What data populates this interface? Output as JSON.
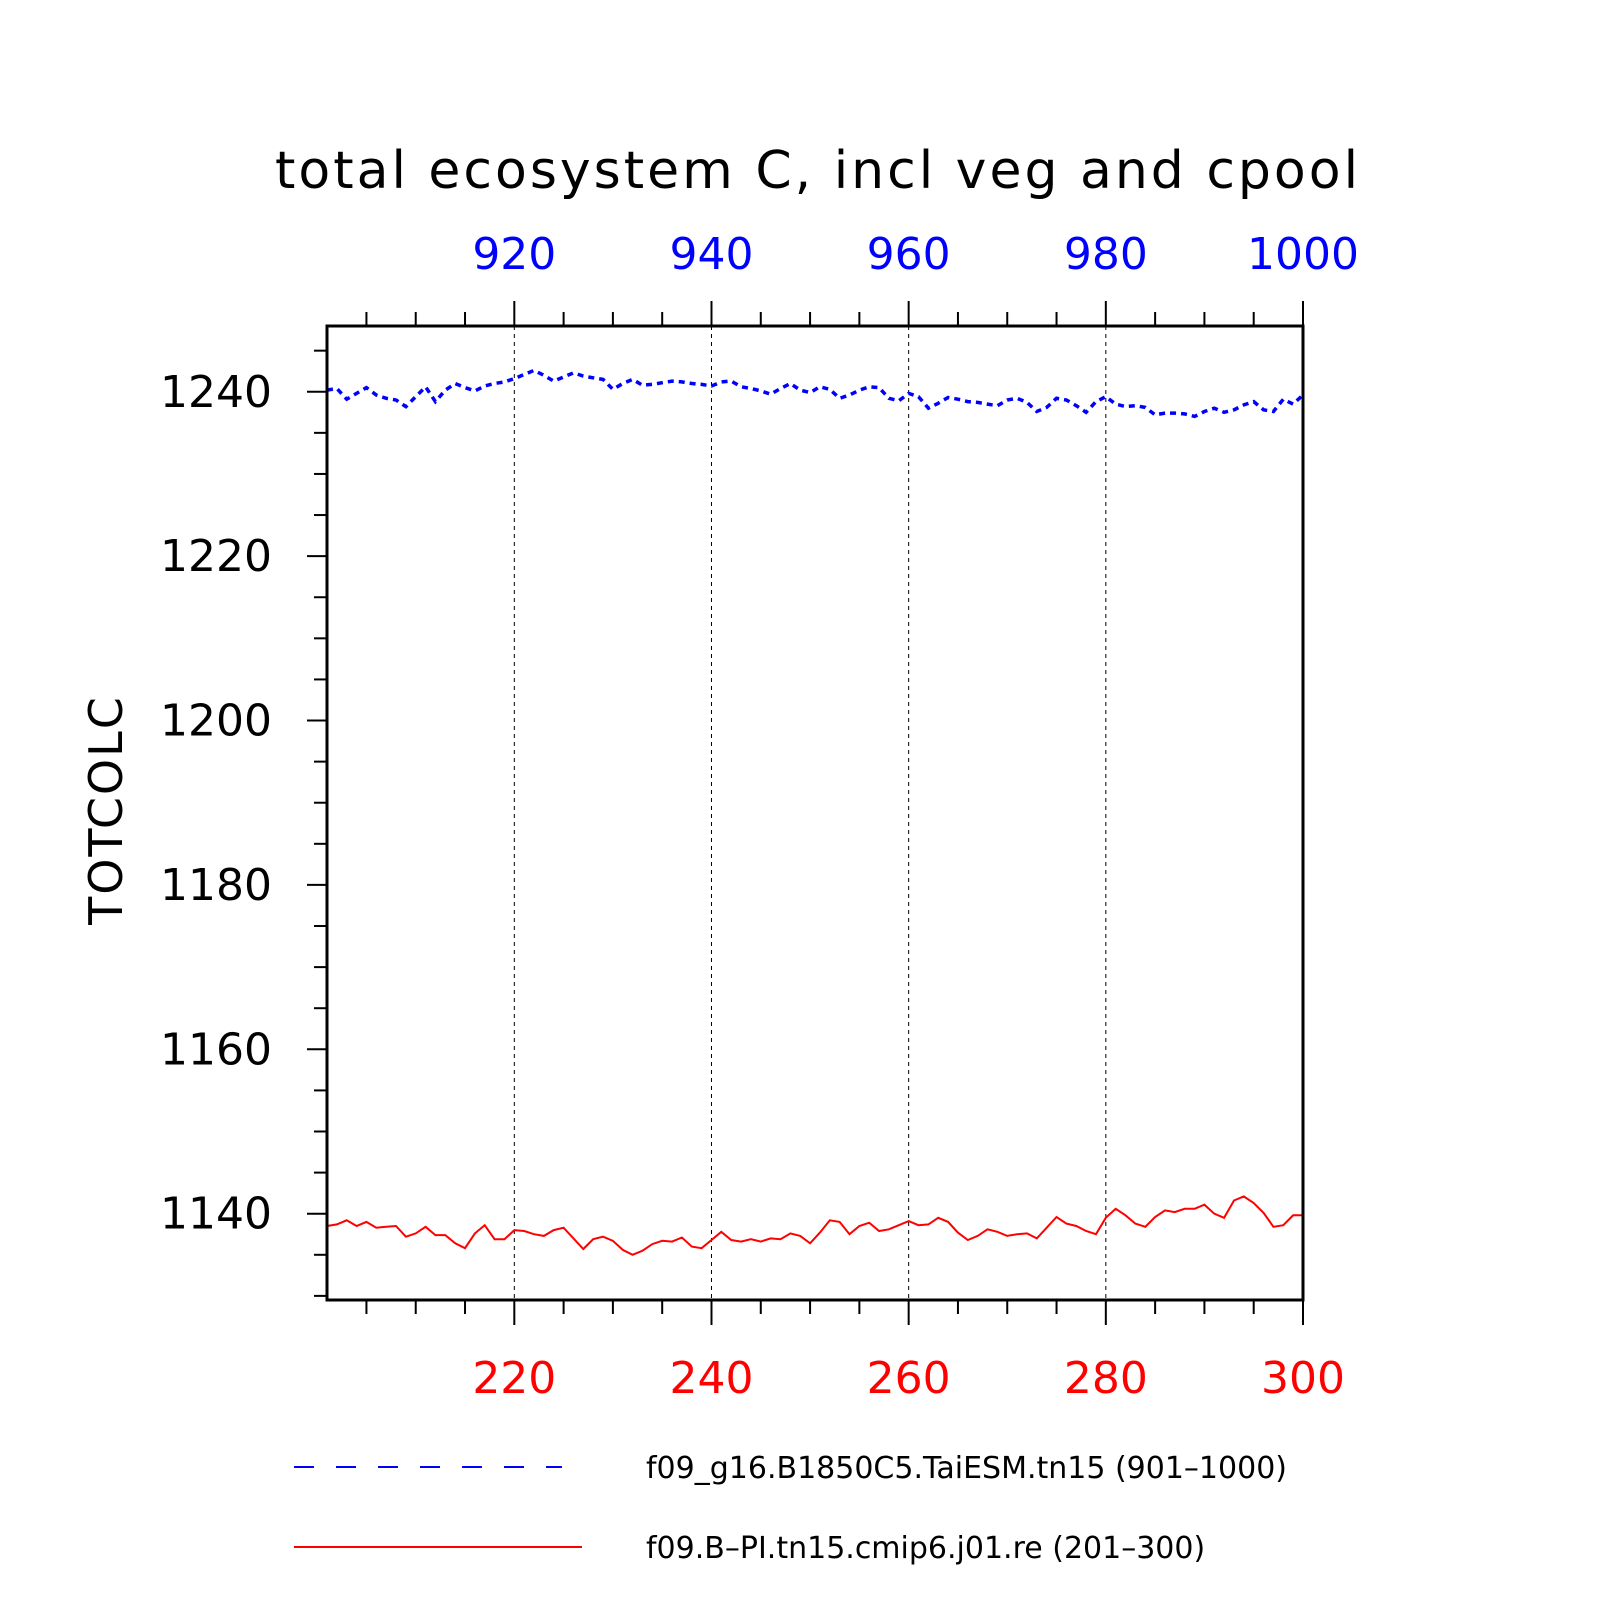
{
  "chart_data": {
    "type": "line",
    "title": "total ecosystem C, incl veg and cpool",
    "ylabel": "TOTCOLC",
    "ylim": [
      1129.5,
      1248
    ],
    "yticks": [
      1140,
      1160,
      1180,
      1200,
      1220,
      1240
    ],
    "grid": "vertical dashed at major x ticks",
    "legend_position": "bottom",
    "axes": {
      "top": {
        "color": "#0000ff",
        "range": [
          901,
          1000
        ],
        "ticks": [
          920,
          940,
          960,
          980,
          1000
        ]
      },
      "bottom": {
        "color": "#ff0000",
        "range": [
          201,
          300
        ],
        "ticks": [
          220,
          240,
          260,
          280,
          300
        ]
      }
    },
    "series": [
      {
        "name": "f09_g16.B1850C5.TaiESM.tn15 (901–1000)",
        "axis": "top",
        "color": "#0000ff",
        "style": "dashed",
        "x_start": 901,
        "values": [
          1240.2,
          1240.4,
          1239.1,
          1239.8,
          1240.5,
          1239.6,
          1239.2,
          1239.0,
          1238.2,
          1239.4,
          1240.6,
          1238.8,
          1240.2,
          1241.0,
          1240.5,
          1240.1,
          1240.7,
          1241.0,
          1241.2,
          1241.6,
          1242.1,
          1242.6,
          1242.0,
          1241.3,
          1241.8,
          1242.3,
          1241.9,
          1241.7,
          1241.5,
          1240.3,
          1241.0,
          1241.5,
          1240.8,
          1240.9,
          1241.1,
          1241.3,
          1241.2,
          1241.0,
          1240.9,
          1240.7,
          1241.2,
          1241.3,
          1240.6,
          1240.4,
          1240.1,
          1239.7,
          1240.4,
          1241.0,
          1240.2,
          1239.9,
          1240.6,
          1240.3,
          1239.2,
          1239.6,
          1240.2,
          1240.6,
          1240.5,
          1239.2,
          1238.9,
          1239.8,
          1239.4,
          1238.0,
          1238.6,
          1239.3,
          1239.1,
          1238.8,
          1238.7,
          1238.5,
          1238.3,
          1239.0,
          1239.2,
          1238.7,
          1237.6,
          1238.1,
          1239.2,
          1239.0,
          1238.3,
          1237.5,
          1238.8,
          1239.4,
          1238.5,
          1238.2,
          1238.3,
          1238.1,
          1237.2,
          1237.4,
          1237.4,
          1237.3,
          1237.0,
          1237.6,
          1238.0,
          1237.5,
          1237.8,
          1238.4,
          1238.8,
          1237.8,
          1237.6,
          1239.1,
          1238.5,
          1239.6
        ]
      },
      {
        "name": "f09.B–PI.tn15.cmip6.j01.re (201–300)",
        "axis": "bottom",
        "color": "#ff0000",
        "style": "solid",
        "x_start": 201,
        "values": [
          1138.5,
          1138.7,
          1139.2,
          1138.5,
          1139.0,
          1138.3,
          1138.4,
          1138.5,
          1137.2,
          1137.6,
          1138.4,
          1137.4,
          1137.4,
          1136.4,
          1135.8,
          1137.6,
          1138.6,
          1136.9,
          1136.9,
          1138.0,
          1137.9,
          1137.5,
          1137.3,
          1138.0,
          1138.3,
          1137.0,
          1135.7,
          1136.9,
          1137.2,
          1136.7,
          1135.6,
          1135.0,
          1135.5,
          1136.3,
          1136.7,
          1136.6,
          1137.1,
          1136.0,
          1135.8,
          1136.8,
          1137.8,
          1136.8,
          1136.6,
          1136.9,
          1136.6,
          1137.0,
          1136.9,
          1137.6,
          1137.3,
          1136.4,
          1137.7,
          1139.2,
          1139.0,
          1137.5,
          1138.5,
          1138.9,
          1137.9,
          1138.1,
          1138.6,
          1139.1,
          1138.6,
          1138.7,
          1139.5,
          1139.0,
          1137.7,
          1136.8,
          1137.3,
          1138.1,
          1137.8,
          1137.3,
          1137.5,
          1137.6,
          1137.0,
          1138.3,
          1139.6,
          1138.8,
          1138.5,
          1137.9,
          1137.5,
          1139.5,
          1140.6,
          1139.8,
          1138.8,
          1138.4,
          1139.6,
          1140.4,
          1140.2,
          1140.6,
          1140.6,
          1141.1,
          1140.0,
          1139.5,
          1141.6,
          1142.1,
          1141.3,
          1140.1,
          1138.4,
          1138.6,
          1139.8,
          1139.8
        ]
      }
    ]
  }
}
